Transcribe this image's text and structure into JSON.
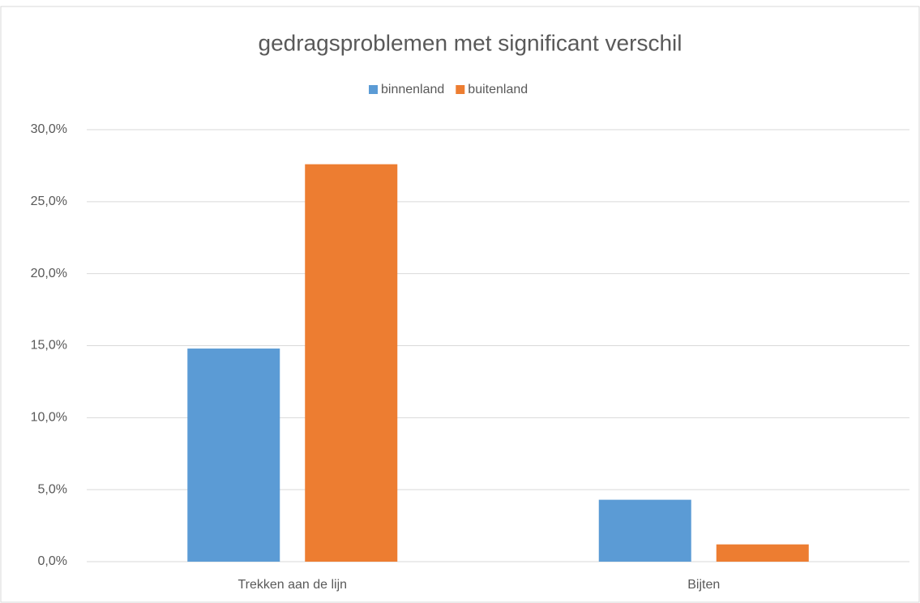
{
  "chart_data": {
    "type": "bar",
    "title": "gedragsproblemen met significant verschil",
    "categories": [
      "Trekken aan de lijn",
      "Bijten"
    ],
    "series": [
      {
        "name": "binnenland",
        "color": "#5b9bd5",
        "values": [
          14.8,
          4.3
        ]
      },
      {
        "name": "buitenland",
        "color": "#ed7d31",
        "values": [
          27.6,
          1.2
        ]
      }
    ],
    "ylim": [
      0,
      30
    ],
    "yticks": [
      {
        "value": 0,
        "label": "0,0%"
      },
      {
        "value": 5,
        "label": "5,0%"
      },
      {
        "value": 10,
        "label": "10,0%"
      },
      {
        "value": 15,
        "label": "15,0%"
      },
      {
        "value": 20,
        "label": "20,0%"
      },
      {
        "value": 25,
        "label": "25,0%"
      },
      {
        "value": 30,
        "label": "30,0%"
      }
    ],
    "grid": true,
    "legend": "top"
  }
}
